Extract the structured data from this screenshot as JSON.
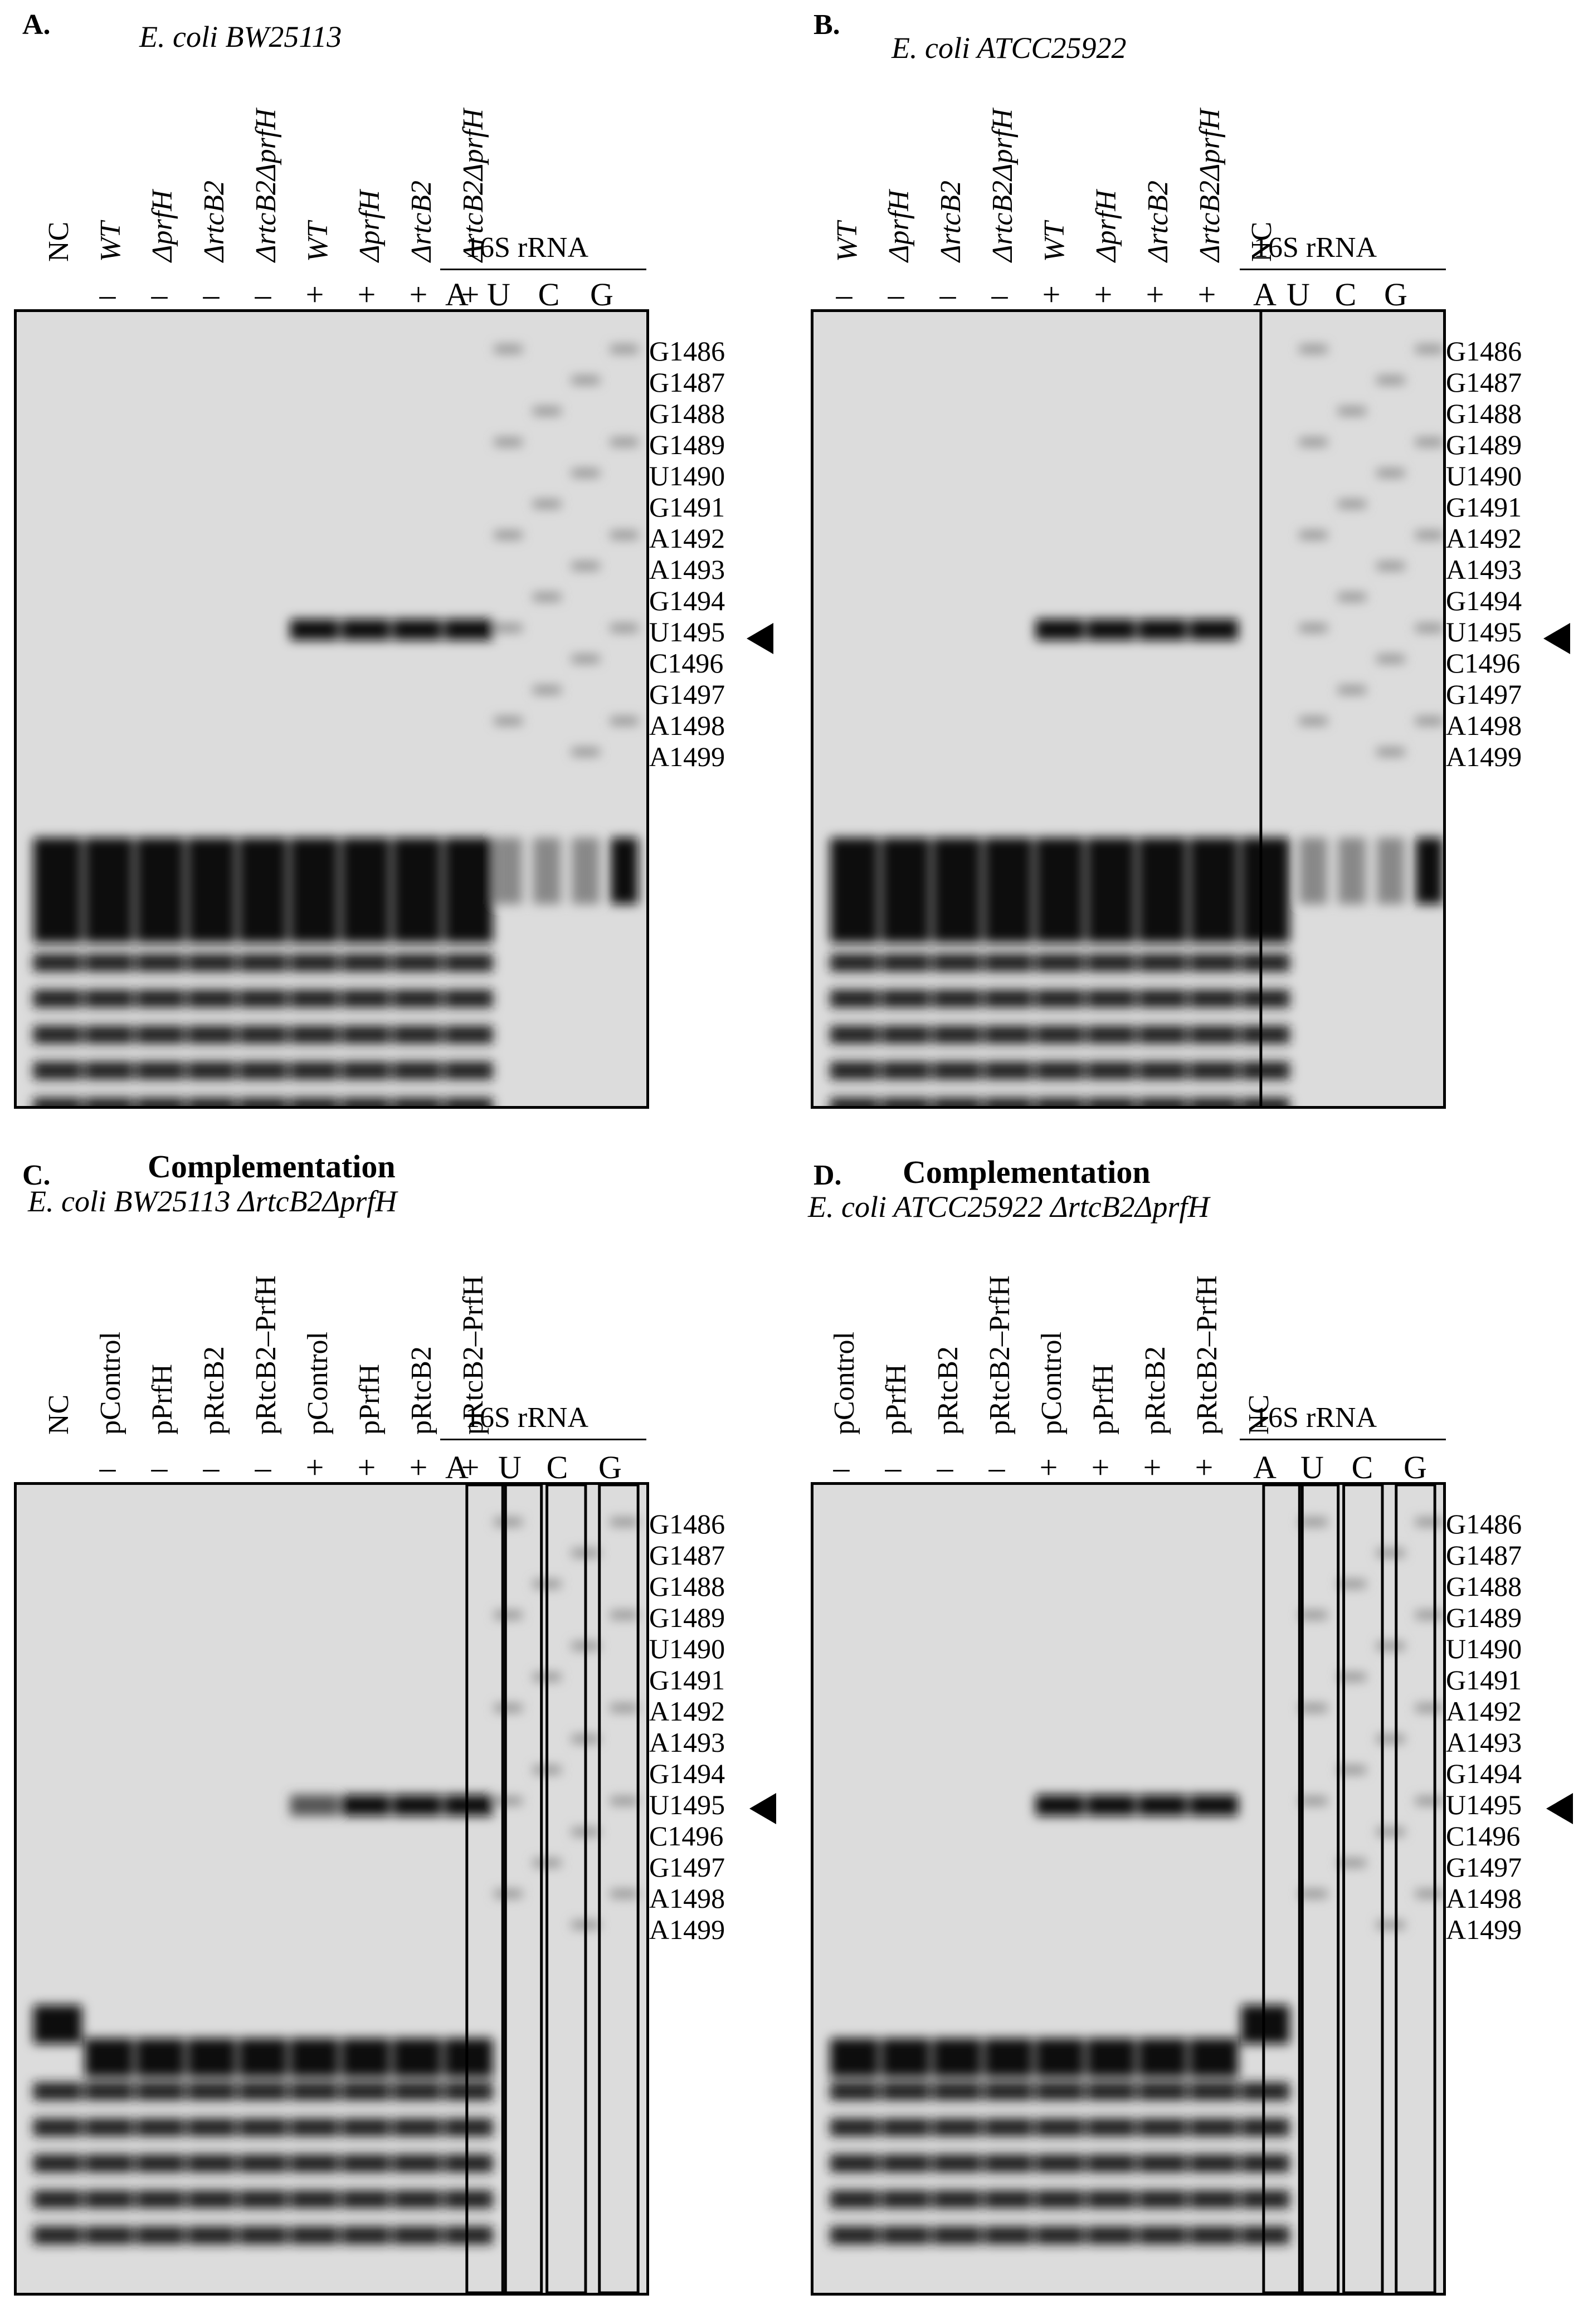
{
  "panels": [
    {
      "id": "A",
      "label": "A.",
      "strain": "E. coli BW25113",
      "title": "",
      "lanes": [
        {
          "name": "NC",
          "sign": ""
        },
        {
          "name": "WT",
          "sign": "–"
        },
        {
          "name": "ΔprfH",
          "sign": "–"
        },
        {
          "name": "ΔrtcB2",
          "sign": "–"
        },
        {
          "name": "ΔrtcB2ΔprfH",
          "sign": "–"
        },
        {
          "name": "WT",
          "sign": "+"
        },
        {
          "name": "ΔprfH",
          "sign": "+"
        },
        {
          "name": "ΔrtcB2",
          "sign": "+"
        },
        {
          "name": "ΔrtcB2ΔprfH",
          "sign": "+"
        }
      ],
      "sequencing_header": "16S rRNA",
      "sequencing_lanes": [
        "A",
        "U",
        "C",
        "G"
      ]
    },
    {
      "id": "B",
      "label": "B.",
      "strain": "E. coli ATCC25922",
      "title": "",
      "lanes": [
        {
          "name": "WT",
          "sign": "–"
        },
        {
          "name": "ΔprfH",
          "sign": "–"
        },
        {
          "name": "ΔrtcB2",
          "sign": "–"
        },
        {
          "name": "ΔrtcB2ΔprfH",
          "sign": "–"
        },
        {
          "name": "WT",
          "sign": "+"
        },
        {
          "name": "ΔprfH",
          "sign": "+"
        },
        {
          "name": "ΔrtcB2",
          "sign": "+"
        },
        {
          "name": "ΔrtcB2ΔprfH",
          "sign": "+"
        },
        {
          "name": "NC",
          "sign": ""
        }
      ],
      "sequencing_header": "16S rRNA",
      "sequencing_lanes": [
        "A",
        "U",
        "C",
        "G"
      ]
    },
    {
      "id": "C",
      "label": "C.",
      "strain": "E. coli BW25113 ΔrtcB2ΔprfH",
      "title": "Complementation",
      "lanes": [
        {
          "name": "NC",
          "sign": ""
        },
        {
          "name": "pControl",
          "sign": "–"
        },
        {
          "name": "pPrfH",
          "sign": "–"
        },
        {
          "name": "pRtcB2",
          "sign": "–"
        },
        {
          "name": "pRtcB2–PrfH",
          "sign": "–"
        },
        {
          "name": "pControl",
          "sign": "+"
        },
        {
          "name": "pPrfH",
          "sign": "+"
        },
        {
          "name": "pRtcB2",
          "sign": "+"
        },
        {
          "name": "pRtcB2–PrfH",
          "sign": "+"
        }
      ],
      "sequencing_header": "16S rRNA",
      "sequencing_lanes": [
        "A",
        "U",
        "C",
        "G"
      ]
    },
    {
      "id": "D",
      "label": "D.",
      "strain": "E. coli ATCC25922 ΔrtcB2ΔprfH",
      "title": "Complementation",
      "lanes": [
        {
          "name": "pControl",
          "sign": "–"
        },
        {
          "name": "pPrfH",
          "sign": "–"
        },
        {
          "name": "pRtcB2",
          "sign": "–"
        },
        {
          "name": "pRtcB2–PrfH",
          "sign": "–"
        },
        {
          "name": "pControl",
          "sign": "+"
        },
        {
          "name": "pPrfH",
          "sign": "+"
        },
        {
          "name": "pRtcB2",
          "sign": "+"
        },
        {
          "name": "pRtcB2–PrfH",
          "sign": "+"
        },
        {
          "name": "NC",
          "sign": ""
        }
      ],
      "sequencing_header": "16S rRNA",
      "sequencing_lanes": [
        "A",
        "U",
        "C",
        "G"
      ]
    }
  ],
  "markers": [
    "G1486",
    "G1487",
    "G1488",
    "G1489",
    "U1490",
    "G1491",
    "A1492",
    "A1493",
    "G1494",
    "U1495",
    "C1496",
    "G1497",
    "A1498",
    "A1499"
  ],
  "arrow_marker": "G1494",
  "colors": {
    "gel_background": "#dadada",
    "band": "#111111",
    "border": "#000000"
  }
}
